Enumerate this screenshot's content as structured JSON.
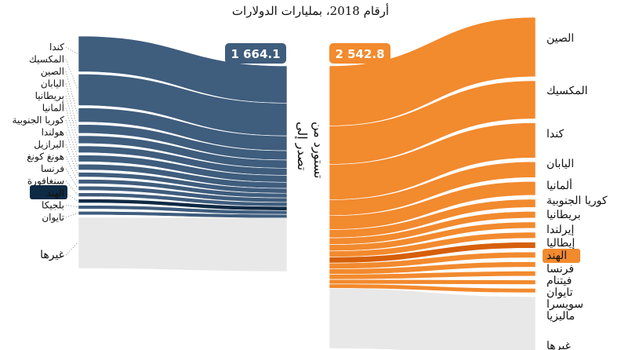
{
  "chart_data": {
    "type": "sankey",
    "title": "أرقام 2018، بمليارات الدولارات",
    "center_labels": {
      "exports": "تصدر إلى",
      "imports": "تستورد من"
    },
    "exports": {
      "total_label": "1 664.1",
      "color": "#3f5d7d",
      "highlight_color": "#0f2a44",
      "flows": [
        {
          "country": "كندا",
          "value": 300.8
        },
        {
          "country": "المكسيك",
          "value": 265.4
        },
        {
          "country": "الصين",
          "value": 120.1
        },
        {
          "country": "اليابان",
          "value": 75.2
        },
        {
          "country": "بريطانيا",
          "value": 66.2
        },
        {
          "country": "ألمانيا",
          "value": 57.7
        },
        {
          "country": "كوريا الجنوبية",
          "value": 56.3
        },
        {
          "country": "هولندا",
          "value": 49.4
        },
        {
          "country": "البرازيل",
          "value": 39.5
        },
        {
          "country": "هونغ كونغ",
          "value": 37.3
        },
        {
          "country": "فرنسا",
          "value": 36.3
        },
        {
          "country": "سنغافورة",
          "value": 33.1
        },
        {
          "country": "الهند",
          "value": 33.1,
          "highlight": true
        },
        {
          "country": "بلجيكا",
          "value": 31.4
        },
        {
          "country": "تايوان",
          "value": 30.2
        },
        {
          "country": "غيرها",
          "value": 432.1,
          "other": true
        }
      ]
    },
    "imports": {
      "total_label": "2 542.8",
      "color": "#f28a2e",
      "highlight_color": "#d65f0a",
      "flows": [
        {
          "country": "الصين",
          "value": 539.7
        },
        {
          "country": "المكسيك",
          "value": 346.5
        },
        {
          "country": "كندا",
          "value": 318.5
        },
        {
          "country": "اليابان",
          "value": 142.6
        },
        {
          "country": "ألمانيا",
          "value": 125.9
        },
        {
          "country": "كوريا الجنوبية",
          "value": 74.3
        },
        {
          "country": "بريطانيا",
          "value": 60.8
        },
        {
          "country": "إيرلندا",
          "value": 57.1
        },
        {
          "country": "إيطاليا",
          "value": 54.7
        },
        {
          "country": "الهند",
          "value": 54.3,
          "highlight": true
        },
        {
          "country": "فرنسا",
          "value": 52.4
        },
        {
          "country": "فيتنام",
          "value": 49.2
        },
        {
          "country": "تايوان",
          "value": 45.8
        },
        {
          "country": "سويسرا",
          "value": 40.5
        },
        {
          "country": "ماليزيا",
          "value": 39.4
        },
        {
          "country": "غيرها",
          "value": 541.1,
          "other": true
        }
      ]
    }
  }
}
